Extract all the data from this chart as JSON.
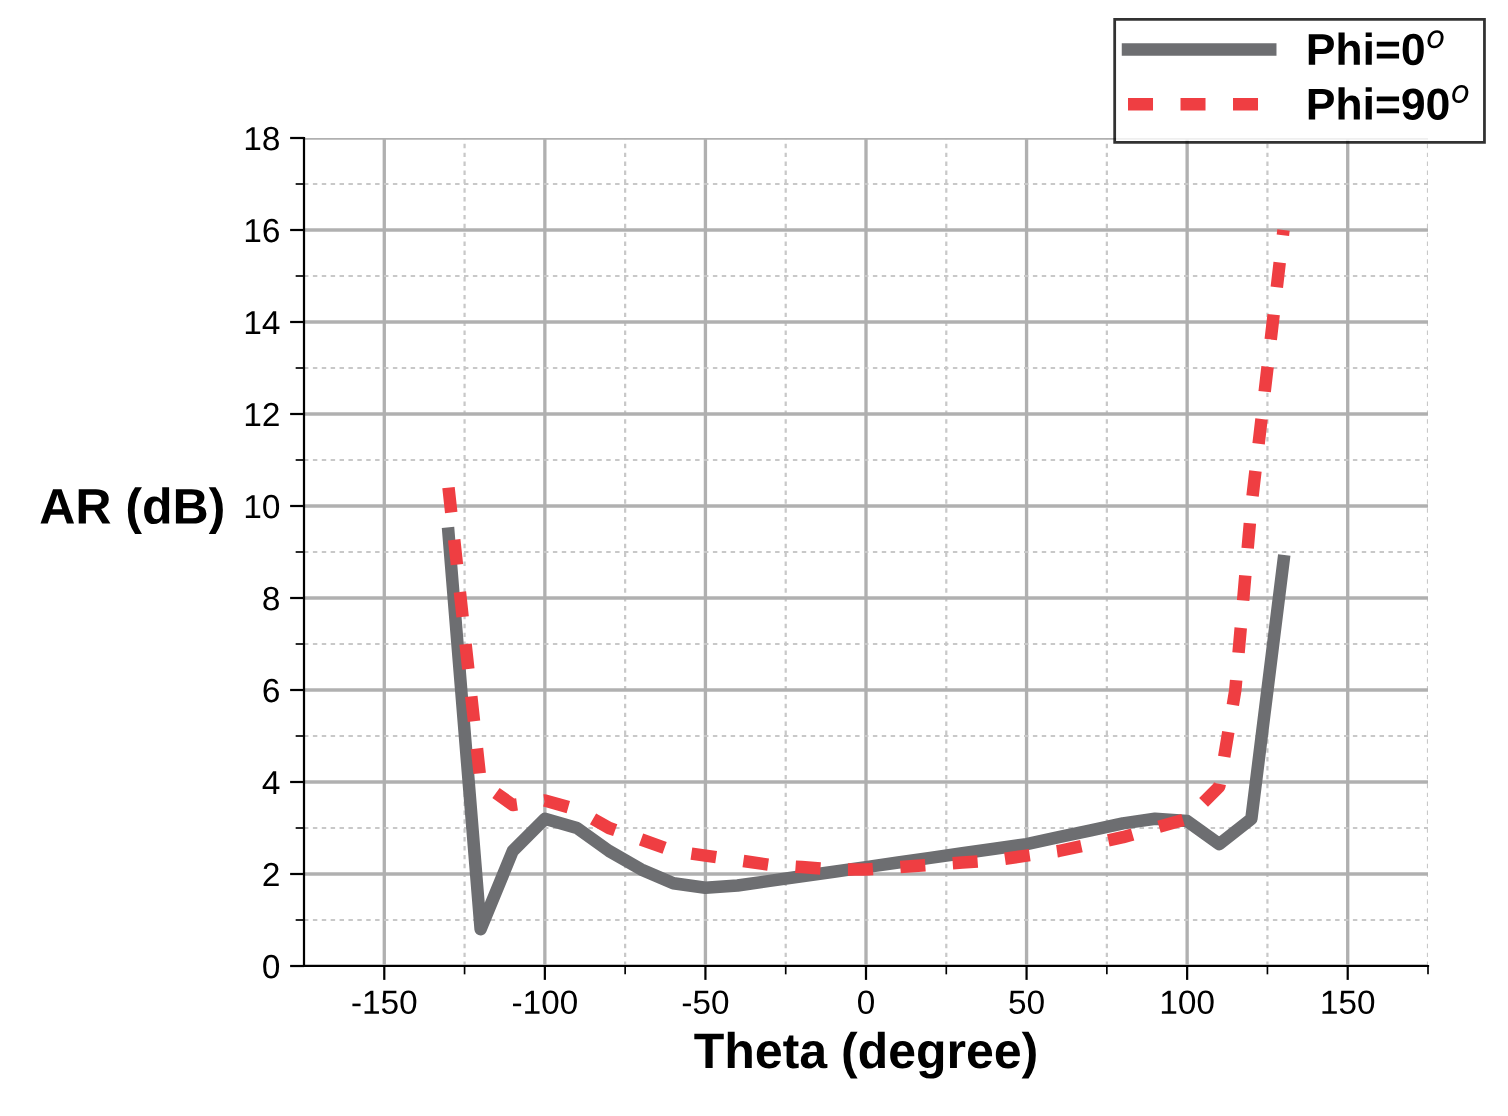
{
  "chart_data": {
    "type": "line",
    "xlabel": "Theta (degree)",
    "ylabel": "AR (dB)",
    "x": [
      -130,
      -120,
      -110,
      -100,
      -90,
      -80,
      -70,
      -60,
      -50,
      -40,
      -30,
      -20,
      -10,
      0,
      10,
      20,
      30,
      40,
      50,
      60,
      70,
      80,
      90,
      100,
      110,
      120,
      130
    ],
    "series": [
      {
        "name": "Phi=0$^{o}$",
        "color": "#6d6e71",
        "line_style": "solid",
        "values": [
          9.4,
          0.8,
          2.5,
          3.2,
          3.0,
          2.5,
          2.1,
          1.8,
          1.7,
          1.75,
          1.85,
          1.95,
          2.05,
          2.15,
          2.25,
          2.35,
          2.45,
          2.55,
          2.65,
          2.8,
          2.95,
          3.1,
          3.2,
          3.15,
          2.65,
          3.2,
          8.8
        ]
      },
      {
        "name": "Phi=90$^{o}$",
        "color": "#ef3e42",
        "line_style": "dashed",
        "x": [
          -130,
          -120,
          -110,
          -100,
          -90,
          -80,
          -70,
          -60,
          -50,
          -40,
          -30,
          -20,
          -10,
          0,
          10,
          20,
          30,
          40,
          50,
          60,
          70,
          80,
          90,
          100,
          110,
          115,
          120,
          130
        ],
        "values": [
          10.4,
          4.0,
          3.5,
          3.6,
          3.4,
          3.0,
          2.75,
          2.5,
          2.4,
          2.3,
          2.2,
          2.15,
          2.1,
          2.1,
          2.15,
          2.2,
          2.25,
          2.3,
          2.4,
          2.5,
          2.65,
          2.8,
          3.0,
          3.2,
          3.9,
          6.0,
          10.0,
          16.0
        ]
      }
    ],
    "xlim": [
      -175,
      175
    ],
    "ylim": [
      0,
      18
    ],
    "xticks": [
      -150,
      {
        "value": -125,
        "label": null
      },
      -100,
      {
        "value": -75,
        "label": null
      },
      -50,
      {
        "value": -25,
        "label": null
      },
      0,
      {
        "value": 25,
        "label": null
      },
      50,
      {
        "value": 75,
        "label": null
      },
      100,
      {
        "value": 125,
        "label": null
      },
      150,
      {
        "value": 175,
        "label": null
      }
    ],
    "yticks": [
      0,
      {
        "value": 1,
        "label": null
      },
      2,
      {
        "value": 3,
        "label": null
      },
      4,
      {
        "value": 5,
        "label": null
      },
      6,
      {
        "value": 7,
        "label": null
      },
      8,
      {
        "value": 9,
        "label": null
      },
      10,
      {
        "value": 11,
        "label": null
      },
      12,
      {
        "value": 13,
        "label": null
      },
      14,
      {
        "value": 15,
        "label": null
      },
      16,
      {
        "value": 17,
        "label": null
      },
      18
    ],
    "grid": true,
    "legend": "top right",
    "marker": "none"
  }
}
